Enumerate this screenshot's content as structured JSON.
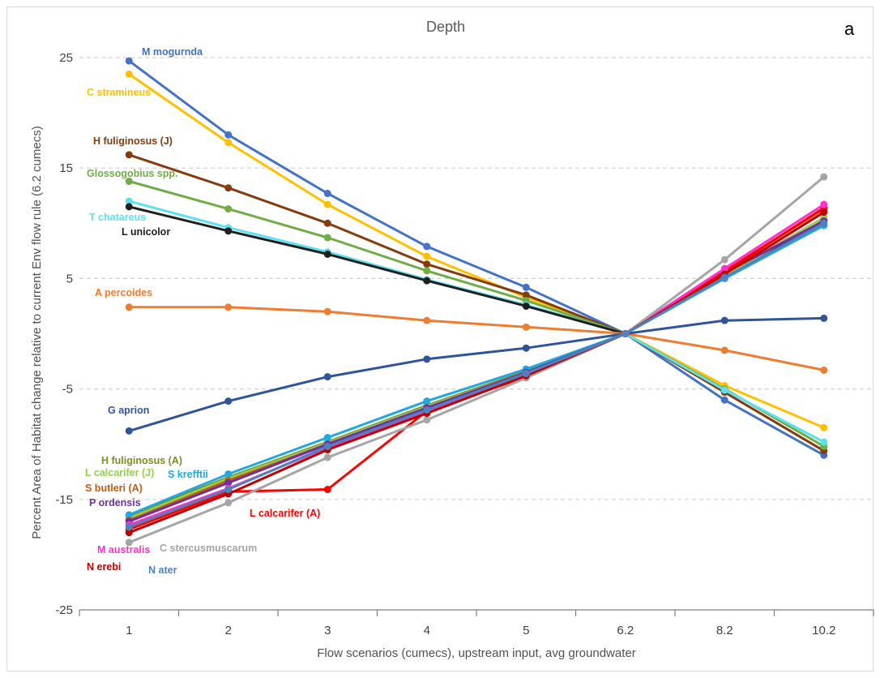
{
  "chart_data": {
    "type": "line",
    "title": "Depth",
    "panel_label": "a",
    "xlabel": "Flow scenarios (cumecs), upstream input, avg groundwater",
    "ylabel": "Percent Area of Habitat change relative to current Env flow rule (6.2 cumecs)",
    "categories": [
      "1",
      "2",
      "3",
      "4",
      "5",
      "6.2",
      "8.2",
      "10.2"
    ],
    "ylim": [
      -25,
      25
    ],
    "yticks": [
      -25,
      -15,
      -5,
      5,
      15,
      25
    ],
    "grid": "horizontal dashed",
    "legend": "none (inline series labels)",
    "series": [
      {
        "name": "M mogurnda",
        "color": "#4472c4",
        "values": [
          24.7,
          18.0,
          12.7,
          7.9,
          4.2,
          0,
          -6.0,
          -11.0
        ]
      },
      {
        "name": "C stramineus",
        "color": "#ffc000",
        "values": [
          23.5,
          17.3,
          11.7,
          7.0,
          3.3,
          0,
          -4.7,
          -8.5
        ]
      },
      {
        "name": "H fuliginosus (J)",
        "color": "#843c0c",
        "values": [
          16.2,
          13.2,
          10.0,
          6.3,
          3.5,
          0,
          -5.3,
          -10.6
        ]
      },
      {
        "name": "Glossogobius spp.",
        "color": "#70ad47",
        "values": [
          13.8,
          11.3,
          8.7,
          5.7,
          3.0,
          0,
          -5.0,
          -10.2
        ]
      },
      {
        "name": "T chatareus",
        "color": "#5ee0ee",
        "values": [
          12.0,
          9.6,
          7.4,
          4.9,
          2.6,
          0,
          -5.1,
          -9.8
        ]
      },
      {
        "name": "L unicolor",
        "color": "#1f1f1f",
        "values": [
          11.5,
          9.3,
          7.2,
          4.8,
          2.5,
          0,
          5.2,
          10.3
        ]
      },
      {
        "name": "A percoides",
        "color": "#ed7d31",
        "values": [
          2.4,
          2.4,
          2.0,
          1.2,
          0.6,
          0,
          -1.5,
          -3.3
        ]
      },
      {
        "name": "G aprion",
        "color": "#2f5597",
        "values": [
          -8.8,
          -6.1,
          -3.9,
          -2.3,
          -1.3,
          0,
          1.2,
          1.4
        ]
      },
      {
        "name": "H fuliginosus (A)",
        "color": "#7f8c1e",
        "values": [
          -16.5,
          -13.0,
          -9.8,
          -6.5,
          -3.4,
          0,
          5.3,
          10.5
        ]
      },
      {
        "name": "L calcarifer (J)",
        "color": "#92d050",
        "values": [
          -16.7,
          -13.1,
          -9.9,
          -6.6,
          -3.5,
          0,
          5.2,
          10.5
        ]
      },
      {
        "name": "S krefftii",
        "color": "#1fa9e1",
        "values": [
          -16.4,
          -12.7,
          -9.4,
          -6.1,
          -3.2,
          0,
          5.0,
          9.8
        ]
      },
      {
        "name": "S butleri (A)",
        "color": "#c55a11",
        "values": [
          -16.9,
          -13.3,
          -10.0,
          -6.8,
          -3.6,
          0,
          5.7,
          11.3
        ]
      },
      {
        "name": "P ordensis",
        "color": "#7030a0",
        "values": [
          -17.0,
          -13.5,
          -10.0,
          -6.7,
          -3.5,
          0,
          5.5,
          10.2
        ]
      },
      {
        "name": "L calcarifer (A)",
        "color": "#ff0000",
        "values": [
          -17.7,
          -14.3,
          -14.1,
          -7.0,
          -3.9,
          0,
          5.6,
          11.4
        ]
      },
      {
        "name": "M australis",
        "color": "#ff33cc",
        "values": [
          -17.3,
          -14.0,
          -10.3,
          -7.0,
          -3.7,
          0,
          5.9,
          11.7
        ]
      },
      {
        "name": "C stercusmuscarum",
        "color": "#a5a5a5",
        "values": [
          -18.9,
          -15.3,
          -11.2,
          -7.8,
          -4.0,
          0,
          6.7,
          14.2
        ]
      },
      {
        "name": "N erebi",
        "color": "#c00000",
        "values": [
          -18.0,
          -14.5,
          -10.5,
          -7.2,
          -3.8,
          0,
          5.4,
          11.0
        ]
      },
      {
        "name": "N ater",
        "color": "#4f81bd",
        "values": [
          -17.5,
          -14.1,
          -10.2,
          -6.9,
          -3.6,
          0,
          5.1,
          10.0
        ]
      }
    ]
  }
}
